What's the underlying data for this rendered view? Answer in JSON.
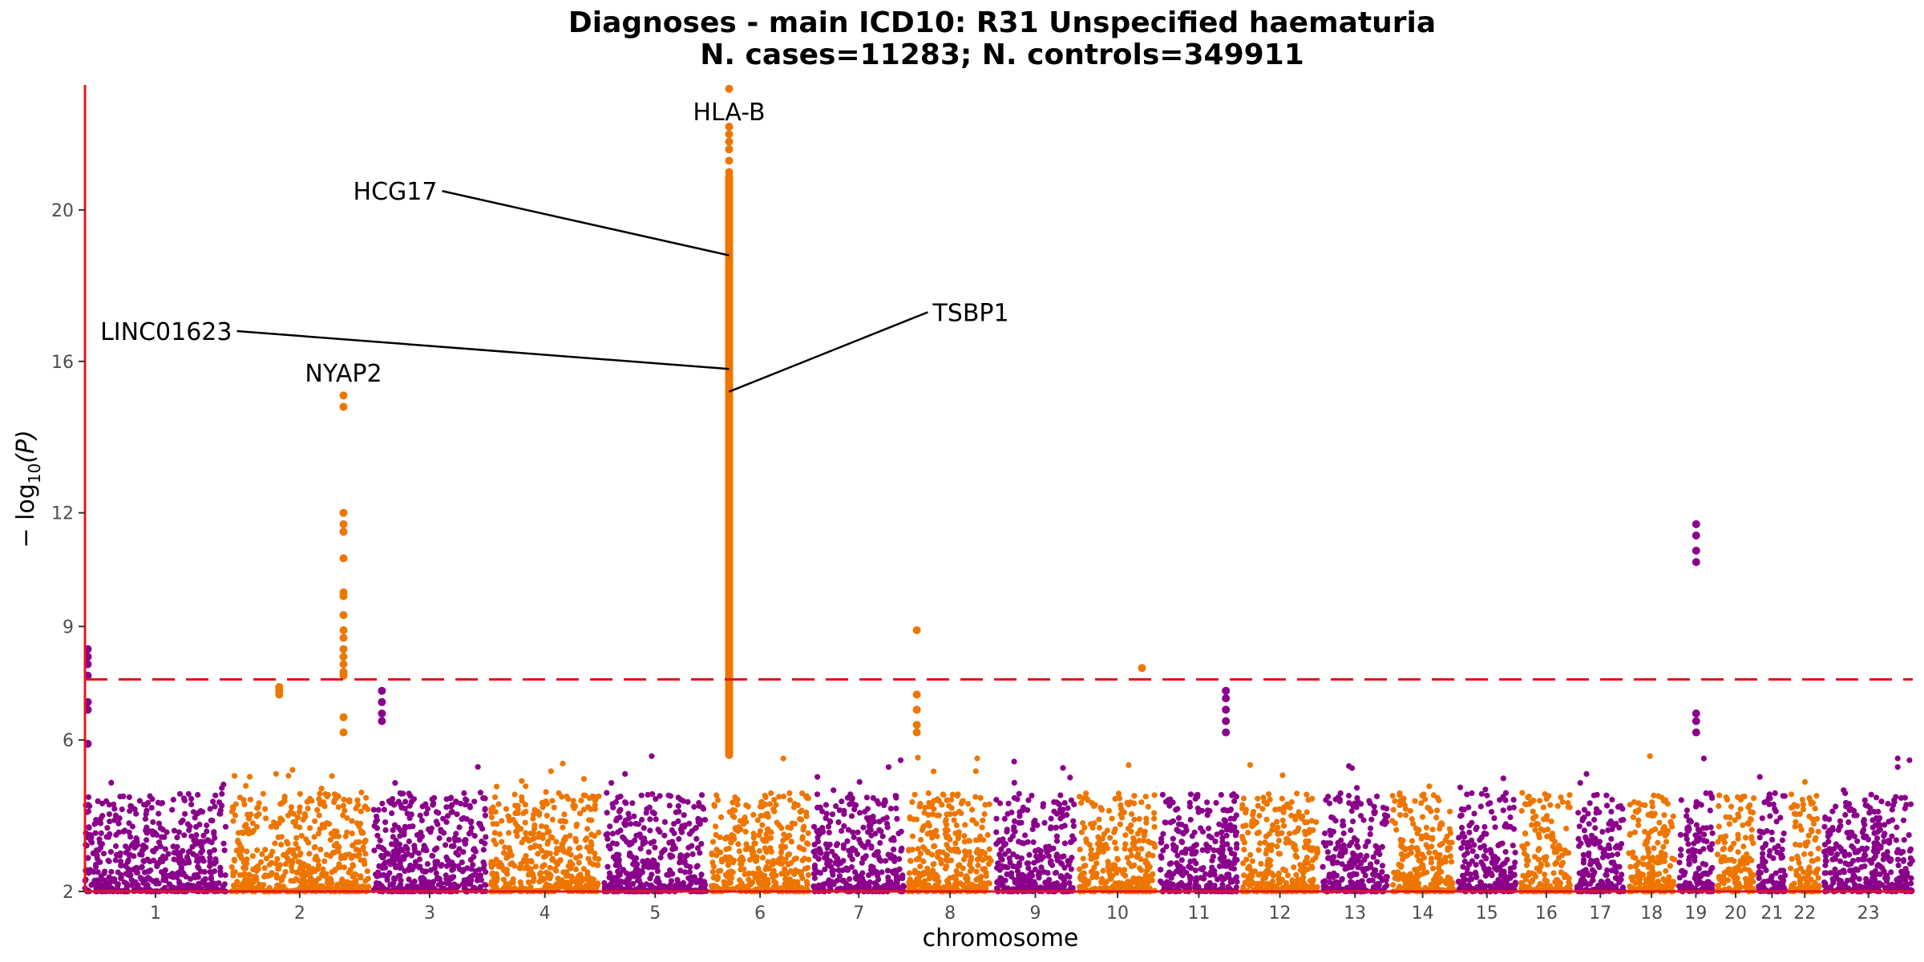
{
  "chart_data": {
    "type": "scatter",
    "title": "Diagnoses - main ICD10: R31 Unspecified haematuria",
    "subtitle": "N. cases=11283; N. controls=349911",
    "xlabel": "chromosome",
    "ylabel": "− log10(P)",
    "ylabel_parts": {
      "prefix": "− log",
      "sub": "10",
      "suffix": "(P)"
    },
    "ylim": [
      2,
      23.3
    ],
    "yticks": [
      2,
      6,
      9,
      12,
      16,
      20
    ],
    "grid": false,
    "significance_line": 7.6,
    "colors": {
      "odd": "#8b008b",
      "even": "#ee7600",
      "threshold": "#e8141c",
      "axis": "#e8141c",
      "label_line": "#000000"
    },
    "chromosomes": [
      {
        "label": "1",
        "length": 248
      },
      {
        "label": "2",
        "length": 242
      },
      {
        "label": "3",
        "length": 198
      },
      {
        "label": "4",
        "length": 190
      },
      {
        "label": "5",
        "length": 181
      },
      {
        "label": "6",
        "length": 171
      },
      {
        "label": "7",
        "length": 159
      },
      {
        "label": "8",
        "length": 145
      },
      {
        "label": "9",
        "length": 138
      },
      {
        "label": "10",
        "length": 134
      },
      {
        "label": "11",
        "length": 135
      },
      {
        "label": "12",
        "length": 133
      },
      {
        "label": "13",
        "length": 114
      },
      {
        "label": "14",
        "length": 107
      },
      {
        "label": "15",
        "length": 102
      },
      {
        "label": "16",
        "length": 90
      },
      {
        "label": "17",
        "length": 83
      },
      {
        "label": "18",
        "length": 80
      },
      {
        "label": "19",
        "length": 59
      },
      {
        "label": "20",
        "length": 64
      },
      {
        "label": "21",
        "length": 47
      },
      {
        "label": "22",
        "length": 51
      },
      {
        "label": "23",
        "length": 156
      }
    ],
    "peaks": [
      {
        "chrom": "1",
        "pos": 5,
        "values": [
          8.4,
          8.2,
          8.0,
          7.7,
          7.0,
          6.8,
          5.9
        ]
      },
      {
        "chrom": "2",
        "pos": 85,
        "values": [
          7.4,
          7.3,
          7.2
        ]
      },
      {
        "chrom": "2",
        "pos": 198,
        "values": [
          15.1,
          14.8,
          12.0,
          11.7,
          11.5,
          10.8,
          9.9,
          9.8,
          9.3,
          8.9,
          8.7,
          8.4,
          8.2,
          8.0,
          7.8,
          7.7,
          6.6,
          6.2
        ]
      },
      {
        "chrom": "3",
        "pos": 15,
        "values": [
          7.3,
          7.0,
          6.7,
          6.5
        ]
      },
      {
        "chrom": "6",
        "pos": 31,
        "values": [
          23.2,
          22.2,
          22.0,
          21.8,
          21.6,
          21.3,
          21.0
        ]
      },
      {
        "chrom": "8",
        "pos": 14,
        "values": [
          8.9,
          7.2,
          6.8,
          6.4,
          6.2
        ]
      },
      {
        "chrom": "10",
        "pos": 110,
        "values": [
          7.9
        ]
      },
      {
        "chrom": "11",
        "pos": 115,
        "values": [
          7.3,
          7.1,
          6.8,
          6.5,
          6.2
        ]
      },
      {
        "chrom": "19",
        "pos": 30,
        "values": [
          11.7,
          11.4,
          11.0,
          10.7,
          6.7,
          6.5,
          6.2
        ]
      }
    ],
    "hla_column": {
      "chrom": "6",
      "pos": 31,
      "from": 5.5,
      "to": 21.0
    },
    "annotations": [
      {
        "text": "HLA-B",
        "chrom": "6",
        "pos": 31,
        "y": 23.2,
        "label_y": 22.6,
        "label_x_offset": 0,
        "anchor": "middle",
        "line": false
      },
      {
        "text": "HCG17",
        "chrom": "6",
        "pos": 31,
        "y": 18.8,
        "label_y": 20.5,
        "label_x_offset": -364,
        "anchor": "end",
        "line": true
      },
      {
        "text": "LINC01623",
        "chrom": "6",
        "pos": 31,
        "y": 15.8,
        "label_y": 16.8,
        "label_x_offset": -620,
        "anchor": "end",
        "line": true
      },
      {
        "text": "TSBP1",
        "chrom": "6",
        "pos": 31,
        "y": 15.2,
        "label_y": 17.3,
        "label_x_offset": 254,
        "anchor": "start",
        "line": true
      },
      {
        "text": "NYAP2",
        "chrom": "2",
        "pos": 198,
        "y": 15.1,
        "label_y": 15.7,
        "label_x_offset": 0,
        "anchor": "middle",
        "line": false
      }
    ]
  }
}
